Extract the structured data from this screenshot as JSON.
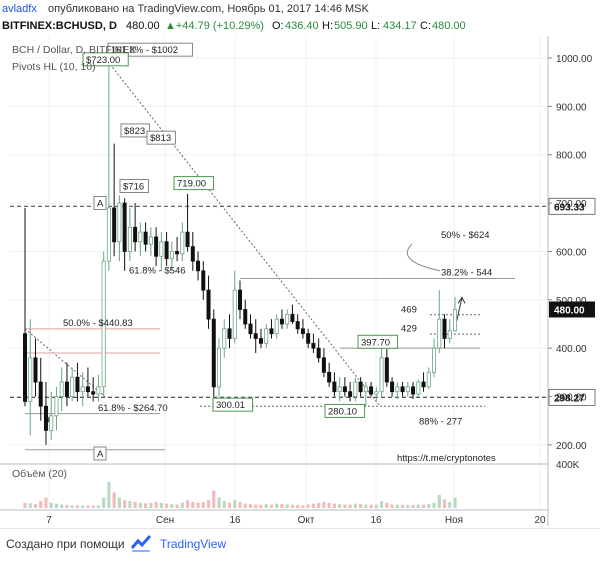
{
  "header": {
    "author": "avladfx",
    "published": "опубликовано на TradingView.com, Ноябрь 01, 2017 14:46 MSK"
  },
  "symbol_bar": {
    "symbol": "BITFINEX:BCHUSD, D",
    "price": "480.00",
    "change": "▲+44.79 (+10.29%)",
    "o_label": "O:",
    "o_val": "436.40",
    "h_label": "H:",
    "h_val": "505.90",
    "l_label": "L:",
    "l_val": "434.17",
    "c_label": "C:",
    "c_val": "480.00"
  },
  "legend": {
    "line1": "BCH / Dollar, D, BITFINEX",
    "line2": "Pivots HL (10, 10)",
    "volume": "Объём (20)"
  },
  "footer": {
    "made_with": "Создано при помощи",
    "brand": "TradingView"
  },
  "colors": {
    "up": "#6ba583",
    "down": "#111111",
    "grid": "#eef1f5",
    "last_price_bg": "#111111",
    "label_green_border": "#3b8a3b",
    "accent_link": "#2962ff"
  },
  "chart_data": {
    "type": "candlestick",
    "title": "BCH / Dollar, D, BITFINEX",
    "ylim": [
      180,
      1060
    ],
    "yticks": [
      "1000.00",
      "900.00",
      "800.00",
      "700.00",
      "600.00",
      "500.00",
      "400.00",
      "300.00",
      "200.00"
    ],
    "xticks": [
      "7",
      "Сен",
      "16",
      "Окт",
      "16",
      "Ноя",
      "20"
    ],
    "last_price": "480.00",
    "price_levels": [
      {
        "value": 693.33,
        "label": "693.33",
        "style": "dashed"
      },
      {
        "value": 298.27,
        "label": "298.27",
        "style": "dashed"
      }
    ],
    "volume_label": "400K",
    "annotations": [
      "161.8% - $1002",
      "$723.00",
      "$823",
      "$813",
      "$716",
      "719.00",
      "61.8% - $546",
      "50% - $624",
      "38.2% - 544",
      "469",
      "429",
      "397.70",
      "50.0% - $440.83",
      "61.8% - $264.70",
      "300.01",
      "280.10",
      "88% - 277",
      "A",
      "A",
      "https://t.me/cryptonotes"
    ],
    "candles": [
      {
        "o": 430,
        "h": 690,
        "l": 280,
        "c": 290
      },
      {
        "o": 290,
        "h": 460,
        "l": 220,
        "c": 380
      },
      {
        "o": 380,
        "h": 420,
        "l": 300,
        "c": 330
      },
      {
        "o": 330,
        "h": 380,
        "l": 250,
        "c": 280
      },
      {
        "o": 280,
        "h": 330,
        "l": 200,
        "c": 230
      },
      {
        "o": 230,
        "h": 310,
        "l": 210,
        "c": 260
      },
      {
        "o": 260,
        "h": 320,
        "l": 230,
        "c": 300
      },
      {
        "o": 300,
        "h": 360,
        "l": 270,
        "c": 330
      },
      {
        "o": 330,
        "h": 370,
        "l": 280,
        "c": 300
      },
      {
        "o": 300,
        "h": 360,
        "l": 290,
        "c": 340
      },
      {
        "o": 340,
        "h": 370,
        "l": 290,
        "c": 310
      },
      {
        "o": 310,
        "h": 350,
        "l": 280,
        "c": 320
      },
      {
        "o": 320,
        "h": 360,
        "l": 300,
        "c": 310
      },
      {
        "o": 310,
        "h": 340,
        "l": 290,
        "c": 305
      },
      {
        "o": 305,
        "h": 345,
        "l": 290,
        "c": 320
      },
      {
        "o": 320,
        "h": 600,
        "l": 300,
        "c": 580
      },
      {
        "o": 580,
        "h": 1000,
        "l": 560,
        "c": 690
      },
      {
        "o": 690,
        "h": 823,
        "l": 590,
        "c": 620
      },
      {
        "o": 620,
        "h": 716,
        "l": 580,
        "c": 700
      },
      {
        "o": 700,
        "h": 710,
        "l": 560,
        "c": 600
      },
      {
        "o": 600,
        "h": 690,
        "l": 580,
        "c": 650
      },
      {
        "o": 650,
        "h": 700,
        "l": 600,
        "c": 620
      },
      {
        "o": 620,
        "h": 660,
        "l": 590,
        "c": 640
      },
      {
        "o": 640,
        "h": 660,
        "l": 600,
        "c": 615
      },
      {
        "o": 615,
        "h": 650,
        "l": 590,
        "c": 630
      },
      {
        "o": 630,
        "h": 650,
        "l": 570,
        "c": 590
      },
      {
        "o": 590,
        "h": 640,
        "l": 560,
        "c": 620
      },
      {
        "o": 620,
        "h": 640,
        "l": 570,
        "c": 585
      },
      {
        "o": 585,
        "h": 620,
        "l": 560,
        "c": 600
      },
      {
        "o": 600,
        "h": 630,
        "l": 580,
        "c": 595
      },
      {
        "o": 595,
        "h": 660,
        "l": 580,
        "c": 640
      },
      {
        "o": 640,
        "h": 719,
        "l": 600,
        "c": 610
      },
      {
        "o": 610,
        "h": 640,
        "l": 560,
        "c": 580
      },
      {
        "o": 580,
        "h": 600,
        "l": 540,
        "c": 560
      },
      {
        "o": 560,
        "h": 580,
        "l": 500,
        "c": 520
      },
      {
        "o": 520,
        "h": 550,
        "l": 440,
        "c": 460
      },
      {
        "o": 460,
        "h": 480,
        "l": 300,
        "c": 320
      },
      {
        "o": 320,
        "h": 420,
        "l": 300,
        "c": 400
      },
      {
        "o": 400,
        "h": 460,
        "l": 380,
        "c": 440
      },
      {
        "o": 440,
        "h": 470,
        "l": 400,
        "c": 420
      },
      {
        "o": 420,
        "h": 560,
        "l": 410,
        "c": 520
      },
      {
        "o": 520,
        "h": 540,
        "l": 460,
        "c": 480
      },
      {
        "o": 480,
        "h": 500,
        "l": 440,
        "c": 450
      },
      {
        "o": 450,
        "h": 470,
        "l": 420,
        "c": 430
      },
      {
        "o": 430,
        "h": 460,
        "l": 390,
        "c": 420
      },
      {
        "o": 420,
        "h": 440,
        "l": 400,
        "c": 410
      },
      {
        "o": 410,
        "h": 450,
        "l": 400,
        "c": 440
      },
      {
        "o": 440,
        "h": 460,
        "l": 420,
        "c": 430
      },
      {
        "o": 430,
        "h": 470,
        "l": 420,
        "c": 460
      },
      {
        "o": 460,
        "h": 480,
        "l": 440,
        "c": 450
      },
      {
        "o": 450,
        "h": 480,
        "l": 440,
        "c": 470
      },
      {
        "o": 470,
        "h": 490,
        "l": 450,
        "c": 455
      },
      {
        "o": 455,
        "h": 470,
        "l": 430,
        "c": 440
      },
      {
        "o": 440,
        "h": 460,
        "l": 420,
        "c": 430
      },
      {
        "o": 430,
        "h": 440,
        "l": 400,
        "c": 410
      },
      {
        "o": 410,
        "h": 430,
        "l": 390,
        "c": 400
      },
      {
        "o": 400,
        "h": 420,
        "l": 370,
        "c": 380
      },
      {
        "o": 380,
        "h": 400,
        "l": 340,
        "c": 350
      },
      {
        "o": 350,
        "h": 370,
        "l": 320,
        "c": 330
      },
      {
        "o": 330,
        "h": 350,
        "l": 300,
        "c": 310
      },
      {
        "o": 310,
        "h": 340,
        "l": 290,
        "c": 320
      },
      {
        "o": 320,
        "h": 340,
        "l": 300,
        "c": 310
      },
      {
        "o": 310,
        "h": 330,
        "l": 290,
        "c": 300
      },
      {
        "o": 300,
        "h": 340,
        "l": 290,
        "c": 330
      },
      {
        "o": 330,
        "h": 340,
        "l": 300,
        "c": 310
      },
      {
        "o": 310,
        "h": 330,
        "l": 280,
        "c": 320
      },
      {
        "o": 320,
        "h": 330,
        "l": 300,
        "c": 305
      },
      {
        "o": 305,
        "h": 320,
        "l": 290,
        "c": 310
      },
      {
        "o": 310,
        "h": 400,
        "l": 300,
        "c": 380
      },
      {
        "o": 380,
        "h": 398,
        "l": 320,
        "c": 330
      },
      {
        "o": 330,
        "h": 340,
        "l": 300,
        "c": 310
      },
      {
        "o": 310,
        "h": 330,
        "l": 295,
        "c": 320
      },
      {
        "o": 320,
        "h": 330,
        "l": 300,
        "c": 310
      },
      {
        "o": 310,
        "h": 330,
        "l": 300,
        "c": 320
      },
      {
        "o": 320,
        "h": 330,
        "l": 295,
        "c": 305
      },
      {
        "o": 305,
        "h": 335,
        "l": 300,
        "c": 330
      },
      {
        "o": 330,
        "h": 350,
        "l": 310,
        "c": 320
      },
      {
        "o": 320,
        "h": 360,
        "l": 315,
        "c": 350
      },
      {
        "o": 350,
        "h": 420,
        "l": 340,
        "c": 400
      },
      {
        "o": 400,
        "h": 520,
        "l": 390,
        "c": 460
      },
      {
        "o": 460,
        "h": 470,
        "l": 400,
        "c": 420
      },
      {
        "o": 420,
        "h": 460,
        "l": 410,
        "c": 436
      },
      {
        "o": 436,
        "h": 506,
        "l": 434,
        "c": 480
      }
    ],
    "volume": [
      60,
      55,
      45,
      80,
      120,
      60,
      50,
      40,
      35,
      30,
      30,
      28,
      30,
      28,
      30,
      120,
      300,
      180,
      120,
      90,
      80,
      70,
      60,
      55,
      60,
      70,
      60,
      50,
      45,
      40,
      60,
      90,
      70,
      60,
      70,
      90,
      200,
      120,
      80,
      60,
      90,
      70,
      50,
      45,
      40,
      38,
      45,
      40,
      50,
      45,
      40,
      38,
      35,
      30,
      40,
      50,
      60,
      70,
      60,
      50,
      45,
      40,
      38,
      50,
      45,
      40,
      38,
      40,
      80,
      60,
      40,
      38,
      36,
      38,
      36,
      40,
      38,
      45,
      60,
      150,
      100,
      70,
      120
    ]
  }
}
